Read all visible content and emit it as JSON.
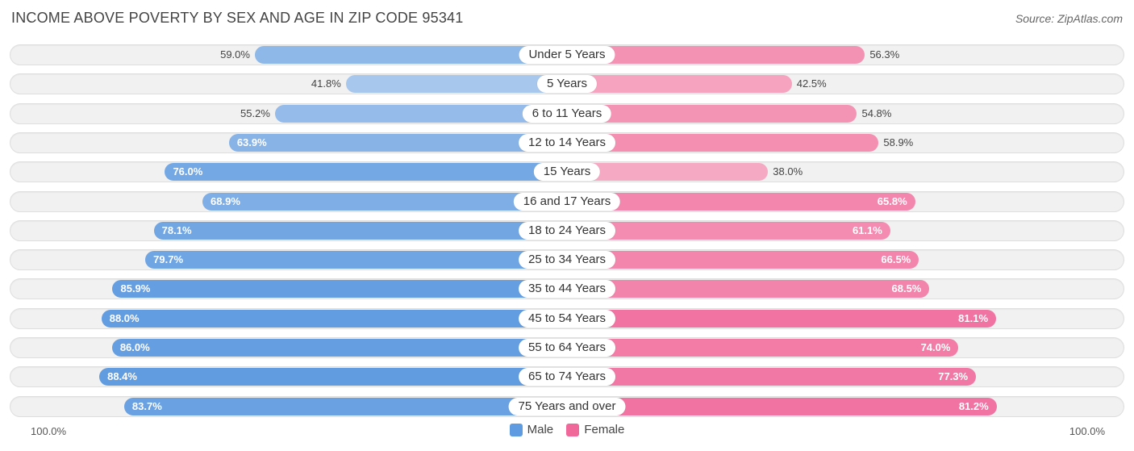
{
  "colors": {
    "male_light": "#aecbee",
    "male_dark": "#5f9be0",
    "female_light": "#f6a9c2",
    "female_dark": "#f0689a"
  },
  "chart_data": {
    "type": "bar",
    "orientation": "horizontal-diverging",
    "title": "INCOME ABOVE POVERTY BY SEX AND AGE IN ZIP CODE 95341",
    "source": "Source: ZipAtlas.com",
    "axis_left_label": "100.0%",
    "axis_right_label": "100.0%",
    "xlim": [
      0,
      100
    ],
    "legend": [
      "Male",
      "Female"
    ],
    "categories": [
      "Under 5 Years",
      "5 Years",
      "6 to 11 Years",
      "12 to 14 Years",
      "15 Years",
      "16 and 17 Years",
      "18 to 24 Years",
      "25 to 34 Years",
      "35 to 44 Years",
      "45 to 54 Years",
      "55 to 64 Years",
      "65 to 74 Years",
      "75 Years and over"
    ],
    "series": [
      {
        "name": "Male",
        "values": [
          59.0,
          41.8,
          55.2,
          63.9,
          76.0,
          68.9,
          78.1,
          79.7,
          85.9,
          88.0,
          86.0,
          88.4,
          83.7
        ],
        "labels": [
          "59.0%",
          "41.8%",
          "55.2%",
          "63.9%",
          "76.0%",
          "68.9%",
          "78.1%",
          "79.7%",
          "85.9%",
          "88.0%",
          "86.0%",
          "88.4%",
          "83.7%"
        ]
      },
      {
        "name": "Female",
        "values": [
          56.3,
          42.5,
          54.8,
          58.9,
          38.0,
          65.8,
          61.1,
          66.5,
          68.5,
          81.1,
          74.0,
          77.3,
          81.2
        ],
        "labels": [
          "56.3%",
          "42.5%",
          "54.8%",
          "58.9%",
          "38.0%",
          "65.8%",
          "61.1%",
          "66.5%",
          "68.5%",
          "81.1%",
          "74.0%",
          "77.3%",
          "81.2%"
        ]
      }
    ]
  }
}
